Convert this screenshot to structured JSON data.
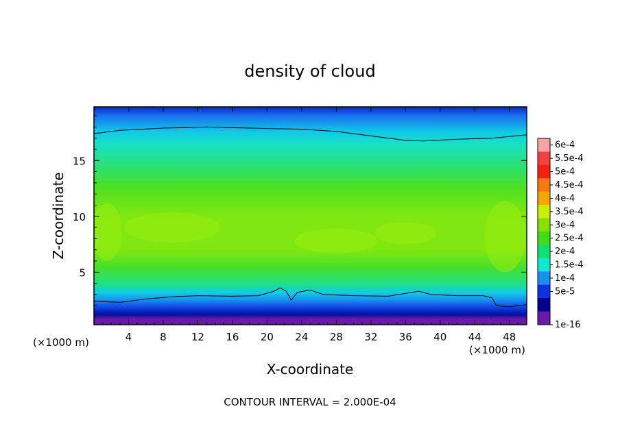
{
  "chart_data": {
    "type": "heatmap",
    "title": "density of cloud",
    "xlabel": "X-coordinate",
    "ylabel": "Z-coordinate",
    "x_unit": "(×1000 m)",
    "x_unit_right": "(×1000 m)",
    "xlim": [
      0,
      50
    ],
    "ylim": [
      0.3,
      19.8
    ],
    "x_ticks": [
      4,
      8,
      12,
      16,
      20,
      24,
      28,
      32,
      36,
      40,
      44,
      48
    ],
    "y_ticks": [
      5,
      10,
      15
    ],
    "colorbar": {
      "labels": [
        "6e-4",
        "5.5e-4",
        "5e-4",
        "4.5e-4",
        "4e-4",
        "3.5e-4",
        "3e-4",
        "2.5e-4",
        "2e-4",
        "1.5e-4",
        "1e-4",
        "5e-5",
        "1e-16"
      ],
      "colors": [
        "#f6a3a3",
        "#f54040",
        "#f62010",
        "#f67a10",
        "#f6a800",
        "#c8f000",
        "#88e000",
        "#40dc18",
        "#10e070",
        "#10e8d0",
        "#1890f0",
        "#1030e0",
        "#000090",
        "#6a1aa8"
      ]
    },
    "field_description_colors": {
      "top": "#1a70f0",
      "upper": "#18e0c8",
      "middle": "#50e020",
      "core": "#80e810",
      "lower": "#20e080",
      "base": "#1040e0",
      "ground": "#6a1aa8"
    },
    "contour_levels": [
      0.0002
    ],
    "upper_contour": [
      [
        0,
        17.4
      ],
      [
        3,
        17.7
      ],
      [
        8,
        17.9
      ],
      [
        13,
        18.0
      ],
      [
        18,
        17.9
      ],
      [
        24,
        17.8
      ],
      [
        28,
        17.6
      ],
      [
        32,
        17.2
      ],
      [
        36,
        16.8
      ],
      [
        38,
        16.75
      ],
      [
        42,
        16.9
      ],
      [
        46,
        17.0
      ],
      [
        50,
        17.3
      ]
    ],
    "lower_contour": [
      [
        0,
        2.4
      ],
      [
        3,
        2.3
      ],
      [
        6,
        2.6
      ],
      [
        9,
        2.8
      ],
      [
        12,
        2.9
      ],
      [
        16,
        2.85
      ],
      [
        19,
        2.9
      ],
      [
        20.8,
        3.3
      ],
      [
        21.5,
        3.6
      ],
      [
        22.2,
        3.3
      ],
      [
        22.8,
        2.5
      ],
      [
        23.5,
        3.2
      ],
      [
        25,
        3.4
      ],
      [
        26.5,
        3.0
      ],
      [
        30,
        2.9
      ],
      [
        34,
        2.85
      ],
      [
        36,
        3.1
      ],
      [
        37.5,
        3.3
      ],
      [
        39,
        3.0
      ],
      [
        42,
        2.9
      ],
      [
        45,
        2.9
      ],
      [
        46,
        2.7
      ],
      [
        46.5,
        2.0
      ],
      [
        48,
        1.9
      ],
      [
        50,
        2.1
      ]
    ],
    "contour_interval_label": "CONTOUR INTERVAL = 2.000E-04"
  }
}
